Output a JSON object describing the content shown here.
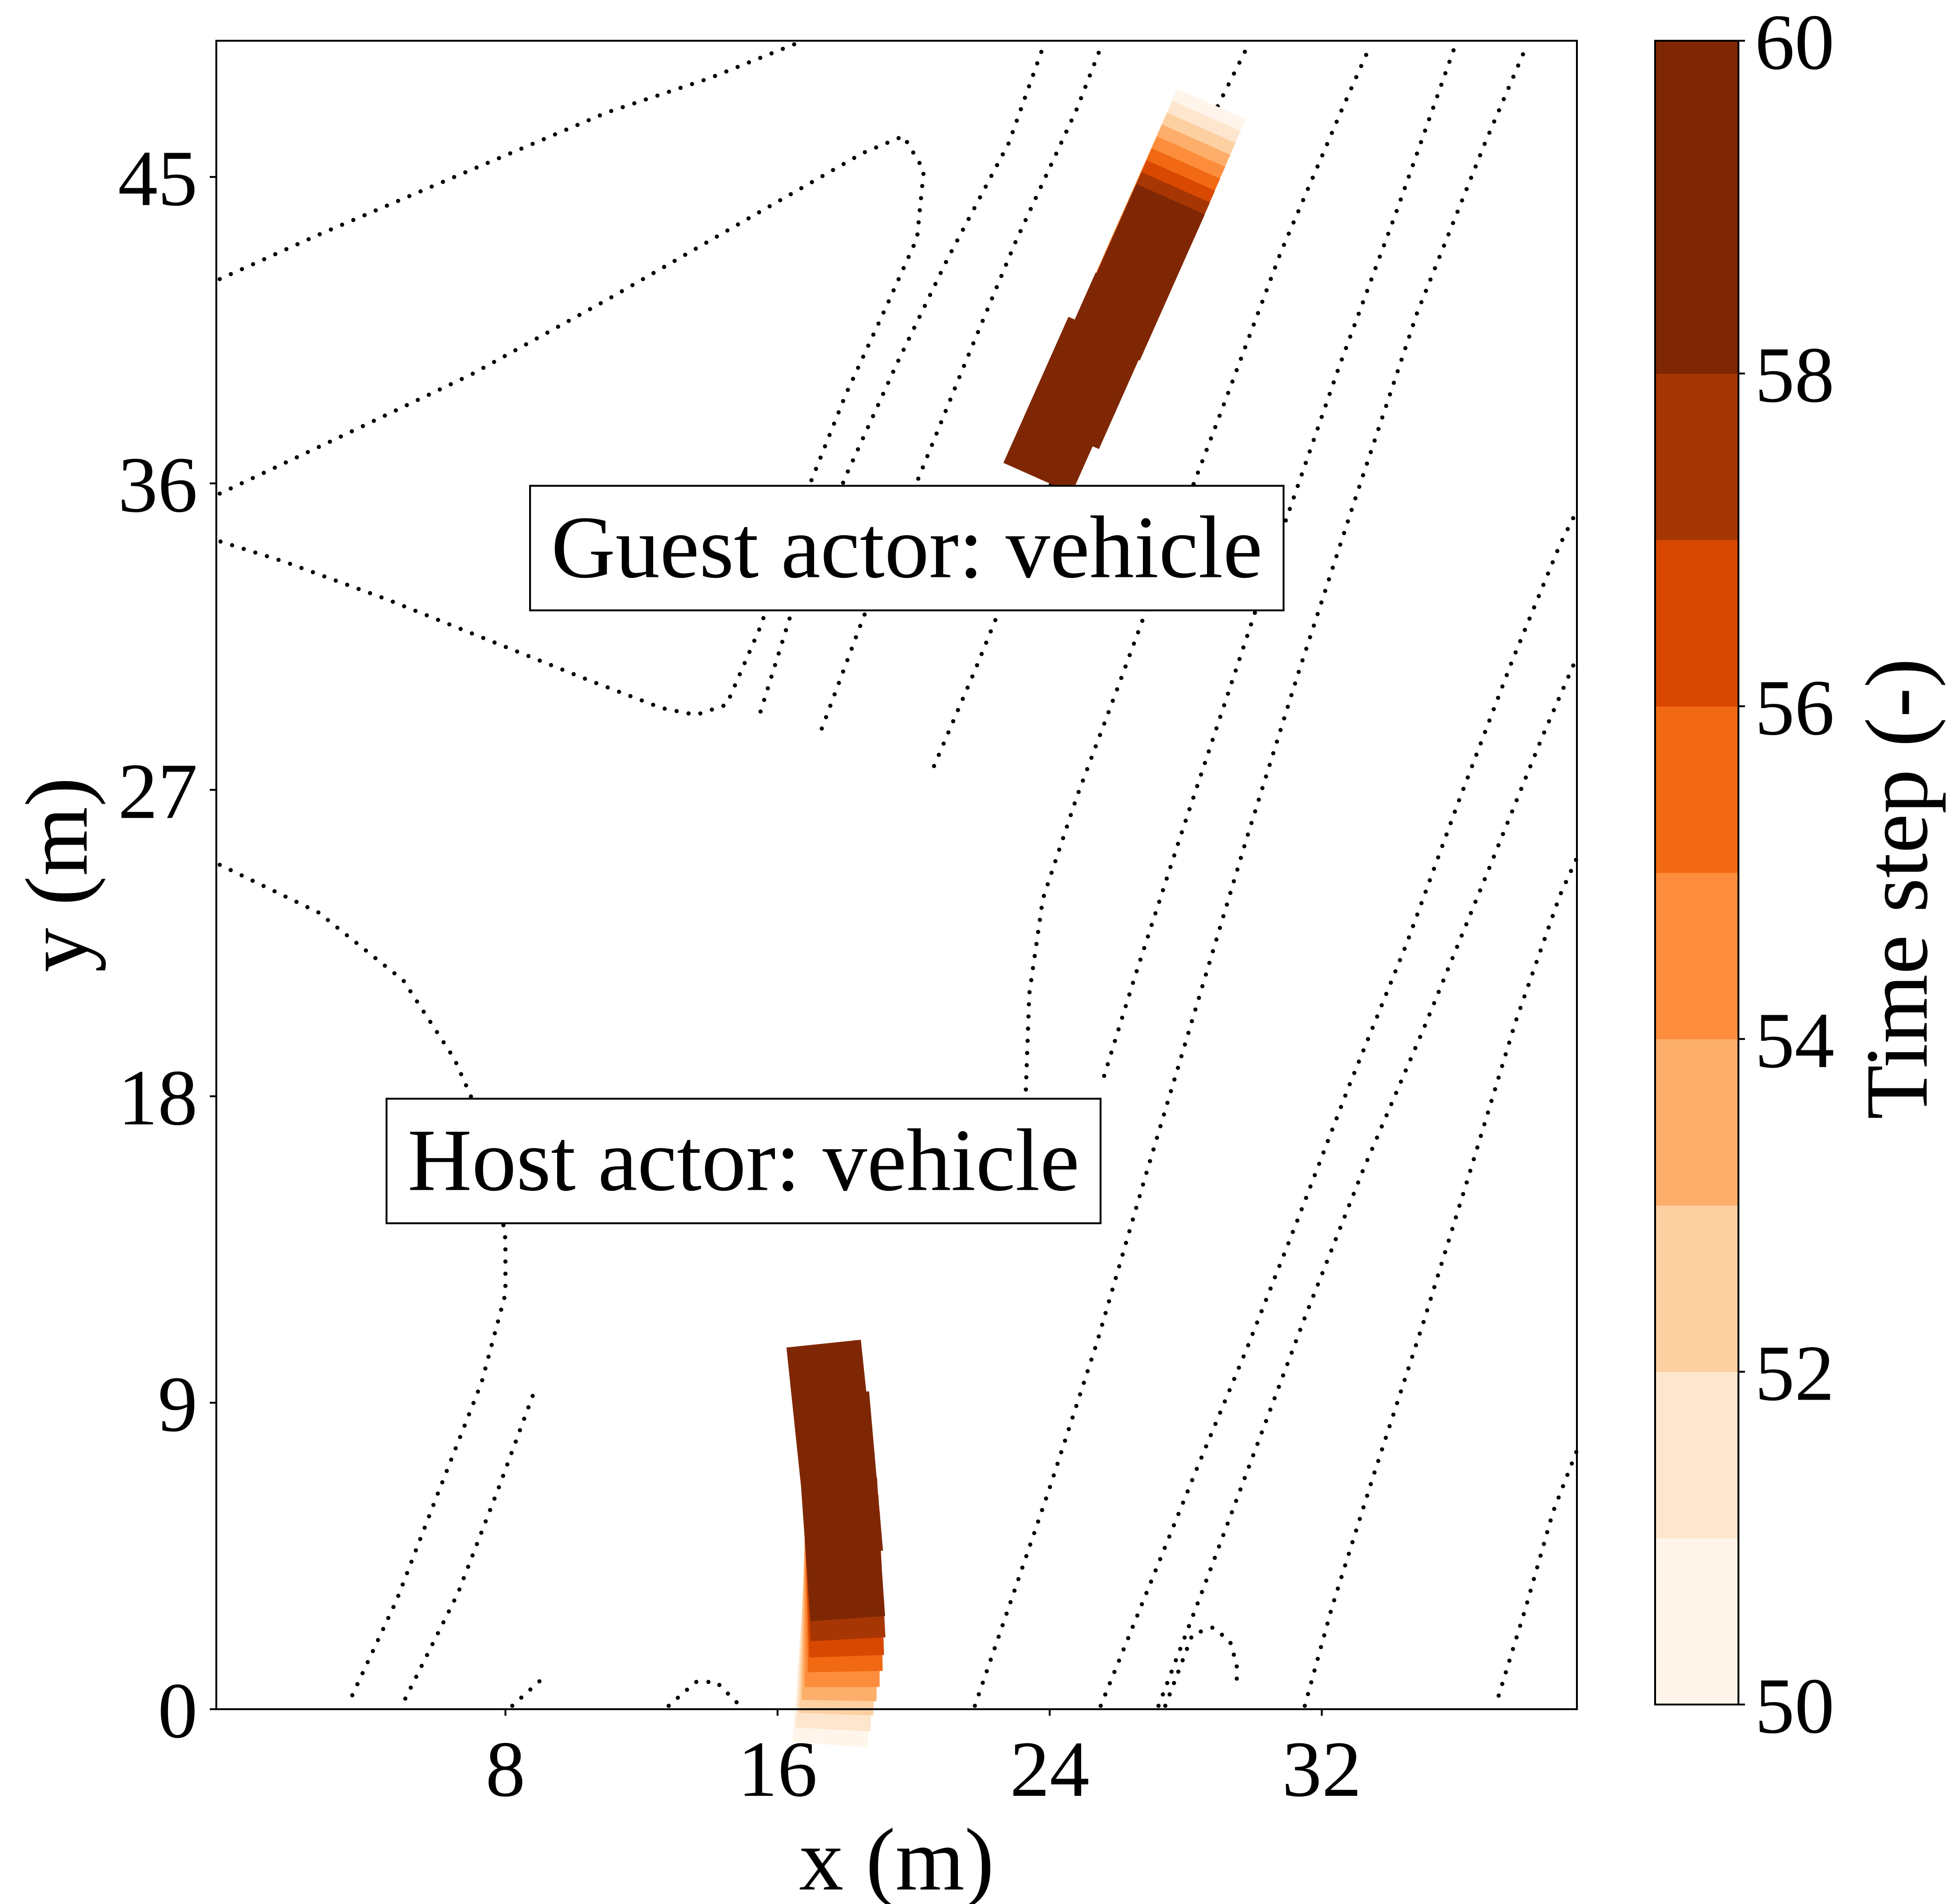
{
  "chart_data": {
    "type": "scatter",
    "xlabel": "x (m)",
    "ylabel": "y (m)",
    "xlim": [
      -0.5,
      39.5
    ],
    "ylim": [
      0,
      49
    ],
    "xticks": [
      "8",
      "16",
      "24",
      "32"
    ],
    "xtick_values": [
      8,
      16,
      24,
      32
    ],
    "yticks": [
      "0",
      "9",
      "18",
      "27",
      "36",
      "45"
    ],
    "ytick_values": [
      0,
      9,
      18,
      27,
      36,
      45
    ],
    "grid": false,
    "annotations": [
      {
        "text": "Guest actor: vehicle",
        "x": 19.8,
        "y": 34.1
      },
      {
        "text": "Host actor: vehicle",
        "x": 15.0,
        "y": 16.1
      }
    ],
    "colorbar": {
      "label": "Time step (-)",
      "min": 50,
      "max": 60,
      "ticks": [
        "50",
        "52",
        "54",
        "56",
        "58",
        "60"
      ],
      "tick_values": [
        50,
        52,
        54,
        56,
        58,
        60
      ],
      "colors": [
        "#fff5eb",
        "#fee6ce",
        "#fdd0a2",
        "#fdae6b",
        "#fd8d3c",
        "#f16913",
        "#d94801",
        "#a63603",
        "#7f2704",
        "#7f2704"
      ]
    },
    "lane_lines": [
      [
        [
          -0.4,
          42.0
        ],
        [
          2.5,
          43.3
        ],
        [
          6.5,
          45.0
        ],
        [
          11.0,
          46.9
        ],
        [
          14.0,
          47.9
        ],
        [
          16.5,
          48.9
        ]
      ],
      [
        [
          -0.4,
          35.7
        ],
        [
          3.0,
          37.3
        ],
        [
          7.0,
          39.2
        ],
        [
          11.0,
          41.4
        ],
        [
          15.0,
          43.7
        ],
        [
          18.5,
          45.7
        ],
        [
          19.7,
          46.2
        ],
        [
          20.3,
          45.2
        ],
        [
          20.1,
          43.2
        ],
        [
          19.2,
          41.2
        ],
        [
          18.0,
          38.6
        ],
        [
          16.8,
          35.6
        ],
        [
          15.5,
          31.8
        ],
        [
          14.5,
          29.5
        ],
        [
          13.6,
          29.2
        ],
        [
          12.6,
          29.4
        ],
        [
          10.5,
          30.2
        ],
        [
          7.5,
          31.4
        ],
        [
          4.5,
          32.6
        ],
        [
          1.5,
          33.7
        ],
        [
          -0.4,
          34.3
        ]
      ],
      [
        [
          15.5,
          29.3
        ],
        [
          16.5,
          32.5
        ],
        [
          18.0,
          36.2
        ],
        [
          19.5,
          39.5
        ],
        [
          21.0,
          42.6
        ],
        [
          22.8,
          46.0
        ],
        [
          23.8,
          48.8
        ]
      ],
      [
        [
          17.3,
          28.8
        ],
        [
          18.5,
          32.0
        ],
        [
          20.0,
          35.8
        ],
        [
          21.5,
          39.5
        ],
        [
          23.0,
          43.1
        ],
        [
          24.8,
          47.0
        ],
        [
          25.5,
          48.8
        ]
      ],
      [
        [
          20.6,
          27.7
        ],
        [
          21.8,
          30.5
        ],
        [
          23.3,
          34.2
        ],
        [
          24.8,
          37.8
        ],
        [
          26.5,
          41.8
        ],
        [
          28.3,
          45.8
        ],
        [
          29.8,
          48.8
        ]
      ],
      [
        [
          -0.4,
          24.8
        ],
        [
          2.5,
          23.4
        ],
        [
          5.0,
          21.4
        ],
        [
          6.5,
          19.1
        ],
        [
          7.6,
          16.6
        ],
        [
          8.0,
          13.8
        ],
        [
          8.0,
          12.2
        ],
        [
          7.3,
          9.6
        ],
        [
          6.0,
          6.3
        ],
        [
          4.8,
          3.2
        ],
        [
          3.4,
          0.2
        ]
      ],
      [
        [
          8.8,
          9.2
        ],
        [
          7.8,
          6.5
        ],
        [
          6.6,
          3.4
        ],
        [
          5.0,
          0.2
        ]
      ],
      [
        [
          8.2,
          0.1
        ],
        [
          9.2,
          1.0
        ]
      ],
      [
        [
          12.8,
          0.1
        ],
        [
          13.6,
          0.8
        ],
        [
          14.2,
          0.8
        ],
        [
          14.8,
          0.2
        ]
      ],
      [
        [
          21.8,
          0.1
        ],
        [
          22.8,
          3.0
        ],
        [
          24.0,
          6.5
        ],
        [
          25.4,
          10.8
        ],
        [
          26.8,
          15.6
        ],
        [
          28.3,
          20.6
        ],
        [
          29.8,
          25.6
        ],
        [
          31.3,
          30.4
        ],
        [
          33.0,
          35.6
        ],
        [
          34.8,
          41.0
        ],
        [
          36.8,
          46.0
        ],
        [
          38.0,
          48.8
        ]
      ],
      [
        [
          31.5,
          0.1
        ],
        [
          32.3,
          3.0
        ],
        [
          33.5,
          6.8
        ],
        [
          35.0,
          11.4
        ],
        [
          36.3,
          15.6
        ],
        [
          37.7,
          20.2
        ],
        [
          39.0,
          23.9
        ],
        [
          39.5,
          25.0
        ]
      ],
      [
        [
          37.2,
          0.4
        ],
        [
          38.0,
          3.0
        ],
        [
          38.8,
          5.8
        ],
        [
          39.5,
          7.6
        ]
      ],
      [
        [
          25.5,
          0.1
        ],
        [
          26.8,
          3.3
        ],
        [
          28.3,
          7.0
        ],
        [
          29.8,
          10.6
        ],
        [
          31.3,
          14.4
        ],
        [
          32.8,
          18.3
        ],
        [
          34.5,
          22.5
        ],
        [
          36.0,
          26.6
        ],
        [
          37.6,
          30.8
        ],
        [
          39.0,
          34.2
        ],
        [
          39.5,
          35.2
        ]
      ],
      [
        [
          27.4,
          0.1
        ],
        [
          28.2,
          2.2
        ],
        [
          28.8,
          2.4
        ],
        [
          29.3,
          2.0
        ],
        [
          29.5,
          1.3
        ],
        [
          29.5,
          0.7
        ]
      ],
      [
        [
          23.3,
          18.2
        ],
        [
          23.4,
          21.0
        ],
        [
          23.8,
          23.8
        ],
        [
          24.8,
          26.8
        ],
        [
          26.0,
          30.0
        ],
        [
          27.4,
          33.8
        ],
        [
          29.0,
          38.0
        ],
        [
          30.8,
          42.8
        ],
        [
          32.6,
          47.0
        ],
        [
          33.4,
          48.8
        ]
      ],
      [
        [
          25.6,
          18.6
        ],
        [
          26.5,
          21.5
        ],
        [
          27.8,
          25.5
        ],
        [
          29.3,
          30.0
        ],
        [
          30.8,
          34.5
        ],
        [
          32.5,
          39.4
        ],
        [
          34.2,
          44.0
        ],
        [
          35.9,
          48.8
        ]
      ],
      [
        [
          27.2,
          0.1
        ],
        [
          28.5,
          3.5
        ],
        [
          30.0,
          7.5
        ],
        [
          31.5,
          11.5
        ],
        [
          33.2,
          15.8
        ],
        [
          35.0,
          20.0
        ],
        [
          36.8,
          24.4
        ],
        [
          38.5,
          28.6
        ],
        [
          39.5,
          30.9
        ]
      ]
    ],
    "host_vehicle": {
      "label": "Host actor: vehicle",
      "poses": [
        {
          "t": 50,
          "x": 17.7,
          "y": 1.3,
          "heading_deg": 86.0
        },
        {
          "t": 51,
          "x": 17.75,
          "y": 1.75,
          "heading_deg": 87.0
        },
        {
          "t": 52,
          "x": 17.8,
          "y": 2.2,
          "heading_deg": 88.0
        },
        {
          "t": 53,
          "x": 17.85,
          "y": 2.6,
          "heading_deg": 89.0
        },
        {
          "t": 54,
          "x": 17.9,
          "y": 3.0,
          "heading_deg": 90.0
        },
        {
          "t": 55,
          "x": 17.95,
          "y": 3.45,
          "heading_deg": 91.0
        },
        {
          "t": 56,
          "x": 17.95,
          "y": 3.9,
          "heading_deg": 92.0
        },
        {
          "t": 57,
          "x": 17.95,
          "y": 4.4,
          "heading_deg": 93.0
        },
        {
          "t": 58,
          "x": 17.9,
          "y": 5.0,
          "heading_deg": 94.0
        },
        {
          "t": 59,
          "x": 17.8,
          "y": 6.9,
          "heading_deg": 95.0
        },
        {
          "t": 60,
          "x": 17.6,
          "y": 8.4,
          "heading_deg": 96.0
        }
      ]
    },
    "guest_vehicle": {
      "label": "Guest actor: vehicle",
      "poses": [
        {
          "t": 50,
          "x": 27.8,
          "y": 45.0,
          "heading_deg": 66.0
        },
        {
          "t": 51,
          "x": 27.65,
          "y": 44.65,
          "heading_deg": 66.0
        },
        {
          "t": 52,
          "x": 27.5,
          "y": 44.3,
          "heading_deg": 66.0
        },
        {
          "t": 53,
          "x": 27.35,
          "y": 43.95,
          "heading_deg": 66.0
        },
        {
          "t": 54,
          "x": 27.2,
          "y": 43.6,
          "heading_deg": 66.0
        },
        {
          "t": 55,
          "x": 27.05,
          "y": 43.25,
          "heading_deg": 66.0
        },
        {
          "t": 56,
          "x": 26.9,
          "y": 42.9,
          "heading_deg": 66.0
        },
        {
          "t": 57,
          "x": 26.75,
          "y": 42.55,
          "heading_deg": 66.0
        },
        {
          "t": 58,
          "x": 26.6,
          "y": 42.2,
          "heading_deg": 66.0
        },
        {
          "t": 59,
          "x": 25.4,
          "y": 39.6,
          "heading_deg": 66.0
        },
        {
          "t": 60,
          "x": 24.6,
          "y": 38.3,
          "heading_deg": 66.0
        }
      ]
    }
  }
}
